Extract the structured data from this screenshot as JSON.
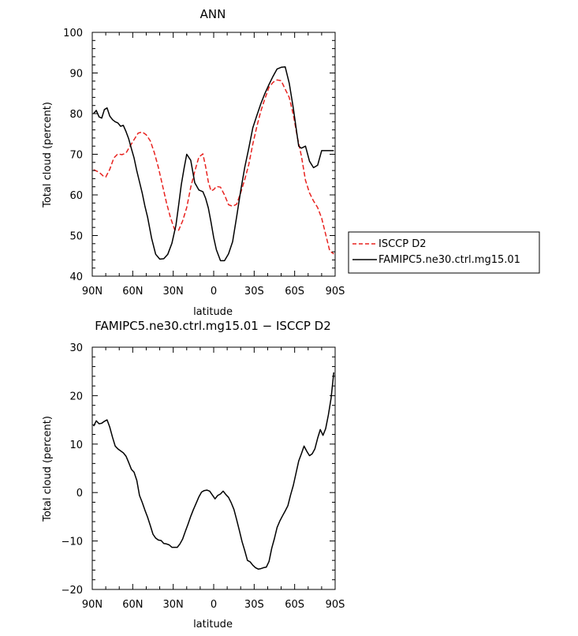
{
  "chart_data": [
    {
      "type": "line",
      "title": "ANN",
      "xlabel": "latitude",
      "ylabel": "Total cloud (percent)",
      "xlim": [
        90,
        -90
      ],
      "ylim": [
        40,
        100
      ],
      "x_ticks": [
        {
          "value": 90,
          "label": "90N"
        },
        {
          "value": 60,
          "label": "60N"
        },
        {
          "value": 30,
          "label": "30N"
        },
        {
          "value": 0,
          "label": "0"
        },
        {
          "value": -30,
          "label": "30S"
        },
        {
          "value": -60,
          "label": "60S"
        },
        {
          "value": -90,
          "label": "90S"
        }
      ],
      "y_ticks": [
        {
          "value": 40,
          "label": "40"
        },
        {
          "value": 50,
          "label": "50"
        },
        {
          "value": 60,
          "label": "60"
        },
        {
          "value": 70,
          "label": "70"
        },
        {
          "value": 80,
          "label": "80"
        },
        {
          "value": 90,
          "label": "90"
        },
        {
          "value": 100,
          "label": "100"
        }
      ],
      "grid": false,
      "legend_position": "outside-right",
      "series": [
        {
          "name": "ISCCP D2",
          "color": "#e8221f",
          "dash": true,
          "x": [
            89,
            85,
            82,
            80,
            77,
            74,
            71,
            68,
            65,
            62,
            59,
            56,
            53,
            50,
            47,
            44,
            41,
            38,
            35,
            32,
            29,
            26,
            23,
            20,
            17,
            14,
            11,
            8,
            6,
            4,
            2,
            0,
            -2,
            -5,
            -8,
            -11,
            -14,
            -17,
            -20,
            -23,
            -26,
            -29,
            -32,
            -35,
            -38,
            -41,
            -44,
            -47,
            -50,
            -53,
            -56,
            -59,
            -62,
            -65,
            -68,
            -71,
            -74,
            -77,
            -80,
            -83,
            -86,
            -89
          ],
          "y": [
            66.2,
            65.6,
            64.7,
            64.4,
            66.3,
            69.1,
            70.1,
            69.9,
            70.3,
            72.0,
            73.6,
            75.2,
            75.5,
            74.8,
            73.3,
            70.4,
            66.8,
            62.4,
            58.1,
            54.4,
            51.5,
            51.3,
            53.6,
            56.9,
            61.9,
            65.8,
            69.3,
            70.1,
            67.0,
            63.2,
            61.0,
            61.3,
            62.1,
            61.9,
            60.0,
            57.6,
            57.2,
            57.7,
            60.5,
            63.8,
            67.5,
            72.5,
            76.9,
            80.7,
            83.7,
            86.5,
            87.7,
            88.3,
            88.1,
            86.0,
            84.0,
            79.7,
            74.2,
            69.6,
            63.6,
            60.5,
            58.5,
            56.9,
            54.3,
            50.3,
            46.2,
            45.5
          ]
        },
        {
          "name": "FAMIPC5.ne30.ctrl.mg15.01",
          "color": "#000000",
          "dash": false,
          "x": [
            89,
            87,
            85,
            83,
            81,
            79,
            77,
            75,
            73,
            71,
            69,
            67,
            65,
            63,
            61,
            59,
            57,
            55,
            53,
            51,
            49,
            46,
            43,
            40,
            37,
            34,
            31,
            28,
            26,
            24,
            22,
            20,
            17,
            14,
            11,
            8,
            6,
            4,
            2,
            0,
            -2,
            -5,
            -8,
            -11,
            -14,
            -17,
            -20,
            -23,
            -26,
            -29,
            -32,
            -35,
            -38,
            -41,
            -44,
            -47,
            -50,
            -53,
            -56,
            -59,
            -61,
            -63,
            -65,
            -68,
            -71,
            -74,
            -77,
            -80,
            -83,
            -86,
            -89
          ],
          "y": [
            80.0,
            80.8,
            79.2,
            78.9,
            81.0,
            81.4,
            79.4,
            78.5,
            78.0,
            77.7,
            76.9,
            77.1,
            75.6,
            73.8,
            71.4,
            69.1,
            65.9,
            63.2,
            60.5,
            57.3,
            54.5,
            49.3,
            45.4,
            44.2,
            44.3,
            45.4,
            48.1,
            52.5,
            57.4,
            62.5,
            66.5,
            70.0,
            68.5,
            63.0,
            61.2,
            60.8,
            59.2,
            56.8,
            53.3,
            49.5,
            46.5,
            43.8,
            43.8,
            45.5,
            48.5,
            54.6,
            61.0,
            66.8,
            71.5,
            76.5,
            79.6,
            82.5,
            85.0,
            87.2,
            89.2,
            91.0,
            91.4,
            91.5,
            87.5,
            81.3,
            76.6,
            72.0,
            71.5,
            72.0,
            68.3,
            66.7,
            67.3,
            70.9,
            70.9,
            70.9,
            70.9
          ]
        }
      ]
    },
    {
      "type": "line",
      "title": "FAMIPC5.ne30.ctrl.mg15.01 − ISCCP D2",
      "xlabel": "latitude",
      "ylabel": "Total cloud (percent)",
      "xlim": [
        90,
        -90
      ],
      "ylim": [
        -20,
        30
      ],
      "x_ticks": [
        {
          "value": 90,
          "label": "90N"
        },
        {
          "value": 60,
          "label": "60N"
        },
        {
          "value": 30,
          "label": "30N"
        },
        {
          "value": 0,
          "label": "0"
        },
        {
          "value": -30,
          "label": "30S"
        },
        {
          "value": -60,
          "label": "60S"
        },
        {
          "value": -90,
          "label": "90S"
        }
      ],
      "y_ticks": [
        {
          "value": -20,
          "label": "−20"
        },
        {
          "value": -10,
          "label": "−10"
        },
        {
          "value": 0,
          "label": "0"
        },
        {
          "value": 10,
          "label": "10"
        },
        {
          "value": 20,
          "label": "20"
        },
        {
          "value": 30,
          "label": "30"
        }
      ],
      "grid": false,
      "series": [
        {
          "color": "#000000",
          "dash": false,
          "x": [
            89,
            87,
            85,
            83,
            81,
            79,
            77,
            75,
            73,
            71,
            69,
            67,
            65,
            63,
            61,
            59,
            57,
            55,
            53,
            51,
            49,
            47,
            45,
            43,
            41,
            39,
            37,
            35,
            33,
            31,
            29,
            27,
            25,
            23,
            21,
            19,
            17,
            15,
            13,
            11,
            9,
            7,
            5,
            3,
            1,
            -1,
            -3,
            -5,
            -7,
            -9,
            -11,
            -13,
            -15,
            -17,
            -19,
            -21,
            -23,
            -25,
            -27,
            -29,
            -31,
            -33,
            -35,
            -37,
            -39,
            -41,
            -43,
            -45,
            -47,
            -49,
            -51,
            -53,
            -55,
            -57,
            -59,
            -61,
            -63,
            -65,
            -67,
            -69,
            -71,
            -73,
            -75,
            -77,
            -79,
            -81,
            -83,
            -85,
            -87,
            -89
          ],
          "y": [
            13.7,
            14.8,
            14.2,
            14.3,
            14.7,
            15.0,
            13.5,
            11.4,
            9.6,
            9.0,
            8.6,
            8.2,
            7.5,
            6.2,
            4.8,
            4.2,
            2.5,
            -0.6,
            -2.0,
            -3.6,
            -5.1,
            -6.8,
            -8.6,
            -9.4,
            -9.8,
            -9.9,
            -10.5,
            -10.6,
            -10.8,
            -11.3,
            -11.3,
            -11.3,
            -10.6,
            -9.6,
            -8.0,
            -6.5,
            -4.9,
            -3.5,
            -2.2,
            -0.9,
            0.1,
            0.4,
            0.5,
            0.3,
            -0.5,
            -1.3,
            -0.6,
            -0.3,
            0.3,
            -0.4,
            -1.0,
            -2.1,
            -3.5,
            -5.6,
            -7.8,
            -10.1,
            -12.0,
            -14.0,
            -14.3,
            -15.0,
            -15.5,
            -15.8,
            -15.7,
            -15.5,
            -15.4,
            -14.2,
            -11.5,
            -9.5,
            -7.2,
            -5.9,
            -4.8,
            -3.8,
            -2.7,
            -0.5,
            1.5,
            4.0,
            6.5,
            8.0,
            9.6,
            8.5,
            7.6,
            8.0,
            9.0,
            11.2,
            13.0,
            11.8,
            13.2,
            16.0,
            19.5,
            24.8
          ]
        }
      ]
    }
  ]
}
